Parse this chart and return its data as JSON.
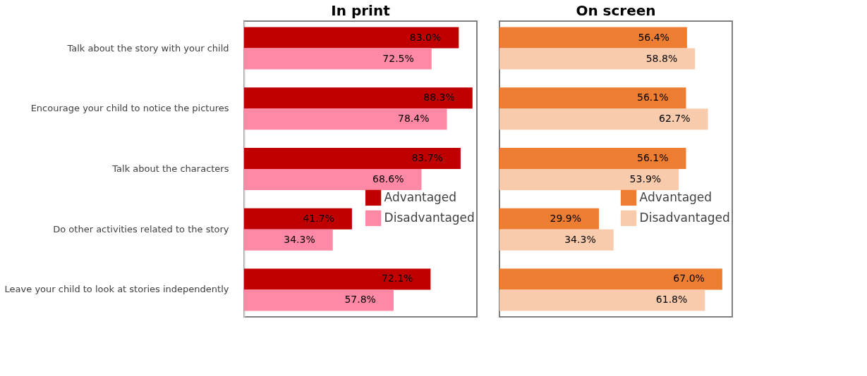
{
  "chart_data": [
    {
      "type": "bar",
      "orientation": "horizontal",
      "title": "In print",
      "legend": "right",
      "tick_labels": "y",
      "categories": [
        "Talk about the story with your child",
        "Encourage your child to notice the pictures",
        "Talk about the characters",
        "Do other activities related to the story",
        "Leave your child to look at stories independently"
      ],
      "series": [
        {
          "name": "Advantaged",
          "color": "#c00000",
          "values": [
            83.0,
            88.3,
            83.7,
            41.7,
            72.1
          ],
          "value_labels": [
            "83.0%",
            "88.3%",
            "83.7%",
            "41.7%",
            "72.1%"
          ]
        },
        {
          "name": "Disadvantaged",
          "color": "#ff88a4",
          "values": [
            72.5,
            78.4,
            68.6,
            34.3,
            57.8
          ],
          "value_labels": [
            "72.5%",
            "78.4%",
            "68.6%",
            "34.3%",
            "57.8%"
          ]
        }
      ]
    },
    {
      "type": "bar",
      "orientation": "horizontal",
      "title": "On screen",
      "legend": "right",
      "tick_labels": false,
      "categories": [
        null,
        null,
        null,
        null,
        null
      ],
      "series": [
        {
          "name": "Advantaged",
          "color": "#ed7d31",
          "values": [
            56.4,
            56.1,
            56.1,
            29.9,
            67.0
          ],
          "value_labels": [
            "56.4%",
            "56.1%",
            "56.1%",
            "29.9%",
            "67.0%"
          ]
        },
        {
          "name": "Disadvantaged",
          "color": "#f8cbad",
          "values": [
            58.8,
            62.7,
            53.9,
            34.3,
            61.8
          ],
          "value_labels": [
            "58.8%",
            "62.7%",
            "53.9%",
            "34.3%",
            "61.8%"
          ]
        }
      ]
    }
  ]
}
